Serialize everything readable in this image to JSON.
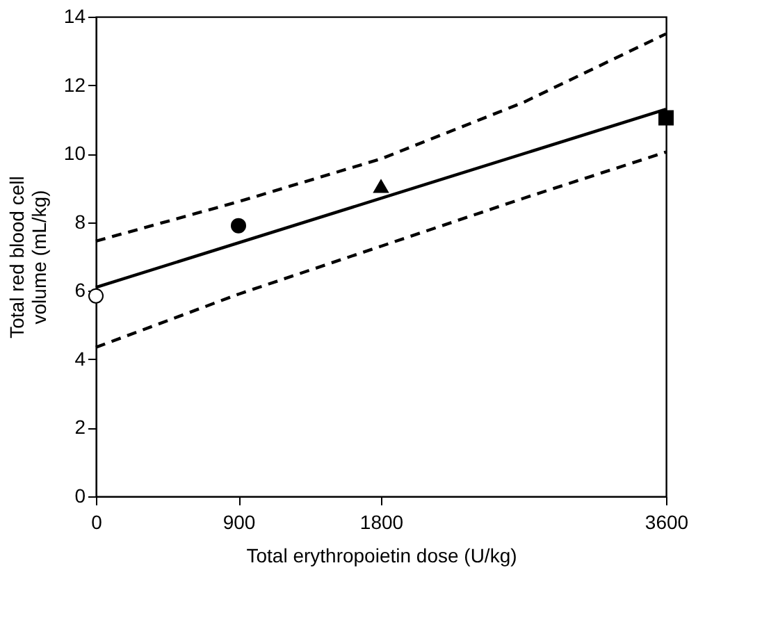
{
  "chart_data": {
    "type": "scatter",
    "xlabel": "Total erythropoietin dose (U/kg)",
    "ylabel": "Total red blood cell volume (mL/kg)",
    "xlim": [
      0,
      3600
    ],
    "ylim": [
      0,
      14
    ],
    "xticks": [
      0,
      900,
      1800,
      3600
    ],
    "yticks": [
      0,
      2,
      4,
      6,
      8,
      10,
      12,
      14
    ],
    "series": [
      {
        "type": "line",
        "color": "#000000",
        "line_style": "solid",
        "marker": "none",
        "x": [
          0,
          3600
        ],
        "values": [
          6.1,
          11.3
        ]
      },
      {
        "type": "line",
        "color": "#000000",
        "line_style": "dashed",
        "marker": "none",
        "x": [
          0,
          900,
          1800,
          2700,
          3600
        ],
        "values": [
          7.45,
          8.6,
          9.85,
          11.5,
          13.5
        ]
      },
      {
        "type": "line",
        "color": "#000000",
        "line_style": "dashed",
        "marker": "none",
        "x": [
          0,
          900,
          1800,
          2700,
          3600
        ],
        "values": [
          4.35,
          5.9,
          7.3,
          8.7,
          10.05
        ]
      },
      {
        "color": "#ffffff",
        "marker": "circle",
        "x": [
          0
        ],
        "values": [
          5.85
        ]
      },
      {
        "color": "#000000",
        "marker": "circle",
        "x": [
          900
        ],
        "values": [
          7.9
        ]
      },
      {
        "color": "#000000",
        "marker": "triangle",
        "x": [
          1800
        ],
        "values": [
          9.05
        ]
      },
      {
        "color": "#000000",
        "marker": "square",
        "x": [
          3600
        ],
        "values": [
          11.05
        ]
      }
    ]
  }
}
